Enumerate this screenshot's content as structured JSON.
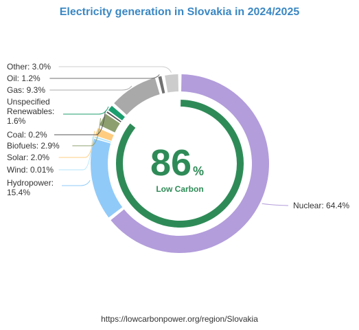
{
  "chart_data": {
    "type": "pie",
    "title": "Electricity generation in Slovakia in 2024/2025",
    "slices": [
      {
        "name": "Nuclear",
        "value": 64.4,
        "label": "Nuclear: 64.4%",
        "color": "#b39ddb"
      },
      {
        "name": "Hydropower",
        "value": 15.4,
        "label": "Hydropower: 15.4%",
        "color": "#90caf9"
      },
      {
        "name": "Wind",
        "value": 0.01,
        "label": "Wind: 0.01%",
        "color": "#b3e5fc"
      },
      {
        "name": "Solar",
        "value": 2.0,
        "label": "Solar: 2.0%",
        "color": "#ffcc80"
      },
      {
        "name": "Biofuels",
        "value": 2.9,
        "label": "Biofuels: 2.9%",
        "color": "#8d9f6e"
      },
      {
        "name": "Coal",
        "value": 0.2,
        "label": "Coal: 0.2%",
        "color": "#555555"
      },
      {
        "name": "Unspecified Renewables",
        "value": 1.6,
        "label": "Unspecified Renewables: 1.6%",
        "color": "#1b9e6f"
      },
      {
        "name": "Gas",
        "value": 9.3,
        "label": "Gas: 9.3%",
        "color": "#a9a9a9"
      },
      {
        "name": "Oil",
        "value": 1.2,
        "label": "Oil: 1.2%",
        "color": "#707070"
      },
      {
        "name": "Other",
        "value": 3.0,
        "label": "Other: 3.0%",
        "color": "#cccccc"
      }
    ],
    "inner_ring": {
      "value": 86,
      "max": 100,
      "color": "#2e8b57"
    },
    "center": {
      "value_text": "86",
      "unit_text": "%",
      "caption": "Low Carbon",
      "color": "#2e8b57"
    }
  },
  "source": {
    "url": "https://lowcarbonpower.org/region/Slovakia"
  }
}
